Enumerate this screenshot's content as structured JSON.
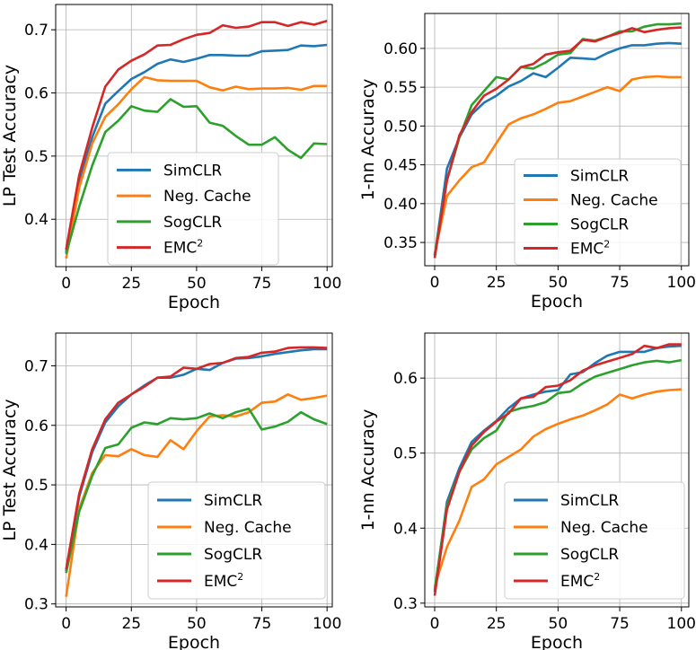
{
  "legend_labels": [
    "SimCLR",
    "Neg. Cache",
    "SogCLR",
    "EMC"
  ],
  "legend_superscript": "2",
  "colors": {
    "SimCLR": "#1f77b4",
    "Neg. Cache": "#ff7f0e",
    "SogCLR": "#2ca02c",
    "EMC": "#d62728"
  },
  "chart_data": [
    {
      "type": "line",
      "title": "",
      "xlabel": "Epoch",
      "ylabel": "LP Test Accuracy",
      "xlim": [
        -4,
        102
      ],
      "ylim": [
        0.325,
        0.74
      ],
      "xticks": [
        0,
        25,
        50,
        75,
        100
      ],
      "yticks": [
        0.4,
        0.5,
        0.6,
        0.7
      ],
      "ytick_labels": [
        "0.4",
        "0.5",
        "0.6",
        "0.7"
      ],
      "grid": true,
      "legend_position": "lower-center",
      "x": [
        0,
        5,
        10,
        15,
        20,
        25,
        30,
        35,
        40,
        45,
        50,
        55,
        60,
        65,
        70,
        75,
        80,
        85,
        90,
        95,
        100
      ],
      "series": [
        {
          "name": "SimCLR",
          "values": [
            0.348,
            0.46,
            0.53,
            0.583,
            0.603,
            0.622,
            0.633,
            0.646,
            0.653,
            0.649,
            0.654,
            0.66,
            0.66,
            0.659,
            0.659,
            0.666,
            0.667,
            0.668,
            0.675,
            0.674,
            0.676
          ]
        },
        {
          "name": "Neg. Cache",
          "values": [
            0.338,
            0.45,
            0.52,
            0.562,
            0.582,
            0.606,
            0.625,
            0.62,
            0.619,
            0.619,
            0.619,
            0.609,
            0.604,
            0.61,
            0.606,
            0.607,
            0.607,
            0.608,
            0.605,
            0.611,
            0.611
          ]
        },
        {
          "name": "SogCLR",
          "values": [
            0.345,
            0.42,
            0.485,
            0.538,
            0.556,
            0.579,
            0.572,
            0.57,
            0.59,
            0.578,
            0.579,
            0.553,
            0.548,
            0.532,
            0.518,
            0.518,
            0.53,
            0.51,
            0.497,
            0.52,
            0.519
          ]
        },
        {
          "name": "EMC",
          "values": [
            0.352,
            0.47,
            0.545,
            0.61,
            0.637,
            0.651,
            0.661,
            0.675,
            0.676,
            0.685,
            0.692,
            0.695,
            0.707,
            0.703,
            0.705,
            0.712,
            0.712,
            0.706,
            0.712,
            0.708,
            0.714
          ]
        }
      ]
    },
    {
      "type": "line",
      "title": "",
      "xlabel": "Epoch",
      "ylabel": "1-nn Accuracy",
      "xlim": [
        -4,
        103
      ],
      "ylim": [
        0.32,
        0.645
      ],
      "xticks": [
        0,
        25,
        50,
        75,
        100
      ],
      "yticks": [
        0.35,
        0.4,
        0.45,
        0.5,
        0.55,
        0.6
      ],
      "ytick_labels": [
        "0.35",
        "0.40",
        "0.45",
        "0.50",
        "0.55",
        "0.60"
      ],
      "grid": true,
      "legend_position": "lower-right",
      "x": [
        0,
        5,
        10,
        15,
        20,
        25,
        30,
        35,
        40,
        45,
        50,
        55,
        60,
        65,
        70,
        75,
        80,
        85,
        90,
        95,
        100
      ],
      "series": [
        {
          "name": "SimCLR",
          "values": [
            0.332,
            0.445,
            0.485,
            0.515,
            0.53,
            0.539,
            0.551,
            0.558,
            0.568,
            0.563,
            0.575,
            0.588,
            0.587,
            0.586,
            0.594,
            0.6,
            0.604,
            0.604,
            0.606,
            0.607,
            0.606
          ]
        },
        {
          "name": "Neg. Cache",
          "values": [
            0.335,
            0.41,
            0.43,
            0.447,
            0.453,
            0.478,
            0.502,
            0.51,
            0.515,
            0.522,
            0.53,
            0.532,
            0.538,
            0.544,
            0.55,
            0.545,
            0.56,
            0.563,
            0.564,
            0.563,
            0.563
          ]
        },
        {
          "name": "SogCLR",
          "values": [
            0.334,
            0.43,
            0.485,
            0.527,
            0.545,
            0.563,
            0.56,
            0.576,
            0.574,
            0.582,
            0.592,
            0.594,
            0.612,
            0.61,
            0.615,
            0.622,
            0.622,
            0.628,
            0.631,
            0.631,
            0.632
          ]
        },
        {
          "name": "EMC",
          "values": [
            0.33,
            0.43,
            0.488,
            0.518,
            0.539,
            0.548,
            0.56,
            0.576,
            0.58,
            0.592,
            0.595,
            0.597,
            0.611,
            0.609,
            0.615,
            0.62,
            0.626,
            0.621,
            0.624,
            0.626,
            0.627
          ]
        }
      ]
    },
    {
      "type": "line",
      "title": "",
      "xlabel": "Epoch",
      "ylabel": "LP Test Accuracy",
      "xlim": [
        -4,
        102
      ],
      "ylim": [
        0.295,
        0.755
      ],
      "xticks": [
        0,
        25,
        50,
        75,
        100
      ],
      "yticks": [
        0.3,
        0.4,
        0.5,
        0.6,
        0.7
      ],
      "ytick_labels": [
        "0.3",
        "0.4",
        "0.5",
        "0.6",
        "0.7"
      ],
      "grid": true,
      "legend_position": "lower-center",
      "x": [
        0,
        5,
        10,
        15,
        20,
        25,
        30,
        35,
        40,
        45,
        50,
        55,
        60,
        65,
        70,
        75,
        80,
        85,
        90,
        95,
        100
      ],
      "series": [
        {
          "name": "SimCLR",
          "values": [
            0.355,
            0.48,
            0.555,
            0.605,
            0.632,
            0.652,
            0.667,
            0.68,
            0.68,
            0.685,
            0.695,
            0.693,
            0.705,
            0.712,
            0.713,
            0.716,
            0.72,
            0.723,
            0.726,
            0.728,
            0.728
          ]
        },
        {
          "name": "Neg. Cache",
          "values": [
            0.312,
            0.46,
            0.52,
            0.55,
            0.548,
            0.56,
            0.55,
            0.547,
            0.575,
            0.56,
            0.59,
            0.615,
            0.617,
            0.615,
            0.622,
            0.638,
            0.64,
            0.652,
            0.643,
            0.646,
            0.65
          ]
        },
        {
          "name": "SogCLR",
          "values": [
            0.352,
            0.455,
            0.515,
            0.562,
            0.568,
            0.596,
            0.605,
            0.602,
            0.612,
            0.61,
            0.612,
            0.62,
            0.612,
            0.622,
            0.628,
            0.593,
            0.598,
            0.606,
            0.622,
            0.61,
            0.602
          ]
        },
        {
          "name": "EMC",
          "values": [
            0.358,
            0.485,
            0.56,
            0.61,
            0.638,
            0.652,
            0.665,
            0.68,
            0.682,
            0.697,
            0.695,
            0.703,
            0.705,
            0.713,
            0.715,
            0.722,
            0.724,
            0.73,
            0.731,
            0.731,
            0.73
          ]
        }
      ]
    },
    {
      "type": "line",
      "title": "",
      "xlabel": "Epoch",
      "ylabel": "1-nn Accuracy",
      "xlim": [
        -4,
        103
      ],
      "ylim": [
        0.295,
        0.66
      ],
      "xticks": [
        0,
        25,
        50,
        75,
        100
      ],
      "yticks": [
        0.3,
        0.4,
        0.5,
        0.6
      ],
      "ytick_labels": [
        "0.3",
        "0.4",
        "0.5",
        "0.6"
      ],
      "grid": true,
      "legend_position": "lower-right",
      "x": [
        0,
        5,
        10,
        15,
        20,
        25,
        30,
        35,
        40,
        45,
        50,
        55,
        60,
        65,
        70,
        75,
        80,
        85,
        90,
        95,
        100
      ],
      "series": [
        {
          "name": "SimCLR",
          "values": [
            0.315,
            0.435,
            0.48,
            0.515,
            0.53,
            0.543,
            0.56,
            0.573,
            0.578,
            0.582,
            0.584,
            0.605,
            0.608,
            0.62,
            0.63,
            0.635,
            0.635,
            0.635,
            0.64,
            0.642,
            0.643
          ]
        },
        {
          "name": "Neg. Cache",
          "values": [
            0.322,
            0.375,
            0.41,
            0.455,
            0.465,
            0.485,
            0.495,
            0.505,
            0.522,
            0.532,
            0.539,
            0.545,
            0.55,
            0.557,
            0.565,
            0.578,
            0.573,
            0.578,
            0.582,
            0.584,
            0.585
          ]
        },
        {
          "name": "SogCLR",
          "values": [
            0.318,
            0.43,
            0.475,
            0.505,
            0.52,
            0.53,
            0.555,
            0.56,
            0.563,
            0.568,
            0.58,
            0.582,
            0.593,
            0.602,
            0.607,
            0.612,
            0.617,
            0.621,
            0.623,
            0.621,
            0.624
          ]
        },
        {
          "name": "EMC",
          "values": [
            0.31,
            0.425,
            0.475,
            0.51,
            0.528,
            0.542,
            0.553,
            0.573,
            0.575,
            0.588,
            0.59,
            0.597,
            0.61,
            0.617,
            0.622,
            0.627,
            0.632,
            0.643,
            0.64,
            0.645,
            0.645
          ]
        }
      ]
    }
  ]
}
